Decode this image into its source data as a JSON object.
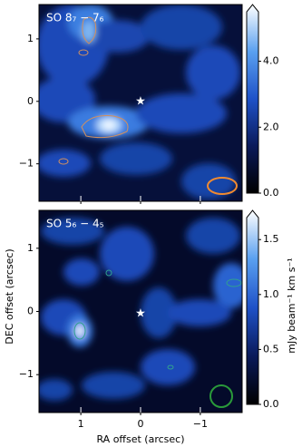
{
  "chart_data": [
    {
      "type": "map",
      "title": "SO 8₇ − 7₆",
      "xlim": [
        1.7,
        -1.7
      ],
      "xticks": [
        1,
        0,
        {
          "value": -1,
          "label": "−1"
        }
      ],
      "show_xtick_labels": false,
      "ylim": [
        -1.6,
        1.55
      ],
      "yticks": [
        1,
        0,
        {
          "value": -1,
          "label": "−1"
        }
      ],
      "clim": [
        0,
        5.5
      ],
      "cticks": [
        {
          "value": 0,
          "label": "0.0"
        },
        {
          "value": 2,
          "label": "2.0"
        },
        {
          "value": 4,
          "label": "4.0"
        }
      ],
      "colormap": [
        "#000000",
        "#0a1a5a",
        "#1f52c8",
        "#5aa0f0",
        "#ffffff"
      ],
      "beam_color": "#f08a30"
    },
    {
      "type": "map",
      "title": "SO 5₆ − 4₅",
      "xlim": [
        1.7,
        -1.7
      ],
      "xticks": [
        1,
        0,
        {
          "value": -1,
          "label": "−1"
        }
      ],
      "show_xtick_labels": true,
      "ylim": [
        -1.6,
        1.6
      ],
      "yticks": [
        1,
        0,
        {
          "value": -1,
          "label": "−1"
        }
      ],
      "clim": [
        0,
        1.7
      ],
      "cticks": [
        {
          "value": 0,
          "label": "0.0"
        },
        {
          "value": 0.5,
          "label": "0.5"
        },
        {
          "value": 1,
          "label": "1.0"
        },
        {
          "value": 1.5,
          "label": "1.5"
        }
      ],
      "colormap": [
        "#000000",
        "#0a1a5a",
        "#1f52c8",
        "#5aa0f0",
        "#ffffff"
      ],
      "beam_color": "#2a9a3a",
      "xlabel": "RA offset (arcsec)",
      "ylabel": "DEC offset (arcsec)",
      "colorbar_label": "mJy beam⁻¹ km s⁻¹"
    }
  ]
}
